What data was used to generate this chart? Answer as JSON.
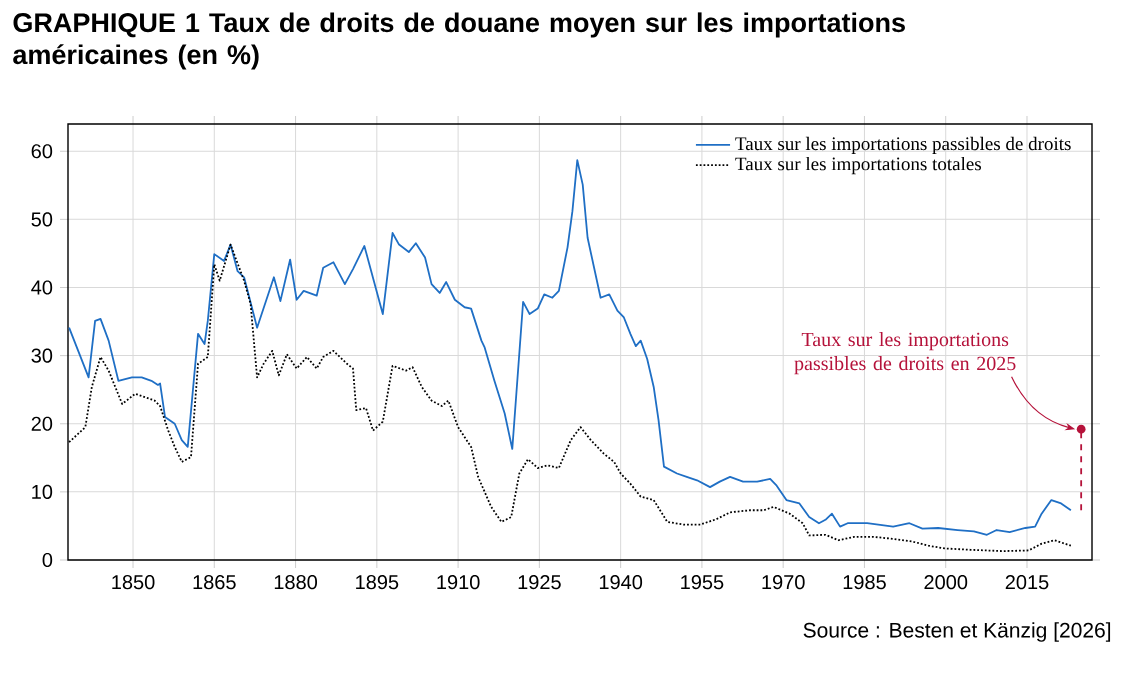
{
  "chart_data": {
    "type": "line",
    "title": "GRAPHIQUE 1  Taux de droits de douane moyen sur les importations américaines (en %)",
    "xlim": [
      1838,
      2027
    ],
    "ylim": [
      0,
      64
    ],
    "xticks": [
      1850,
      1865,
      1880,
      1895,
      1910,
      1925,
      1940,
      1955,
      1970,
      1985,
      2000,
      2015
    ],
    "yticks": [
      0,
      10,
      20,
      30,
      40,
      50,
      60
    ],
    "grid": true,
    "legend": "top right",
    "series": [
      {
        "name": "Taux sur les importations passibles de droits",
        "color": "#1f6fc5",
        "line_style": "solid",
        "x": [
          1838.2,
          1841.8,
          1843,
          1844,
          1845.5,
          1847.3,
          1849.8,
          1851.6,
          1853.4,
          1854.6,
          1855,
          1855.9,
          1857.7,
          1859,
          1860.1,
          1862,
          1863.2,
          1863.8,
          1865,
          1866.8,
          1868,
          1869.3,
          1870.5,
          1872.9,
          1876,
          1877.2,
          1879,
          1880.2,
          1881.5,
          1883.9,
          1885.1,
          1887,
          1889.1,
          1890.6,
          1892.7,
          1896.1,
          1897.9,
          1899.1,
          1900.9,
          1902.2,
          1903.9,
          1905.1,
          1906.6,
          1907.8,
          1909.4,
          1911.2,
          1912.4,
          1914.3,
          1914.9,
          1916.7,
          1918.6,
          1920,
          1922,
          1923.2,
          1924.7,
          1925.9,
          1927.4,
          1928.6,
          1930.2,
          1931.1,
          1932,
          1933,
          1933.9,
          1935.1,
          1936.3,
          1937.9,
          1939.4,
          1940.6,
          1941.8,
          1942.8,
          1943.7,
          1944.9,
          1946.1,
          1947,
          1948,
          1950.4,
          1952.2,
          1954.1,
          1956.5,
          1958.3,
          1960.2,
          1962.6,
          1965.2,
          1967.6,
          1968.8,
          1970.6,
          1973,
          1974.8,
          1976.6,
          1977.8,
          1979,
          1980.5,
          1981.9,
          1985.5,
          1990.3,
          1993.3,
          1995.7,
          1998.6,
          2002.2,
          2005.2,
          2007.6,
          2009.4,
          2011.8,
          2014.7,
          2016.5,
          2017.7,
          2019.5,
          2021.3,
          2023.1
        ],
        "values": [
          34.1,
          26.8,
          35.1,
          35.4,
          32.2,
          26.3,
          26.8,
          26.8,
          26.3,
          25.7,
          25.9,
          21,
          20,
          17.6,
          16.6,
          33.2,
          31.7,
          35.1,
          44.9,
          43.9,
          46.3,
          42.4,
          41.5,
          34.1,
          41.5,
          38,
          44.1,
          38.2,
          39.5,
          38.8,
          42.9,
          43.7,
          40.5,
          42.7,
          46.1,
          36.1,
          48,
          46.3,
          45.2,
          46.5,
          44.4,
          40.5,
          39.2,
          40.8,
          38.2,
          37.1,
          36.9,
          32.2,
          31.2,
          26.3,
          21.5,
          16.3,
          37.9,
          36.1,
          36.9,
          39,
          38.5,
          39.5,
          45.9,
          51.2,
          58.7,
          55.1,
          47.3,
          42.9,
          38.5,
          39,
          36.6,
          35.6,
          33.2,
          31.4,
          32.2,
          29.5,
          25.4,
          20.5,
          13.7,
          12.7,
          12.2,
          11.7,
          10.7,
          11.5,
          12.2,
          11.5,
          11.5,
          11.9,
          10.9,
          8.8,
          8.3,
          6.3,
          5.4,
          5.9,
          6.8,
          4.9,
          5.4,
          5.4,
          4.9,
          5.4,
          4.6,
          4.7,
          4.4,
          4.2,
          3.7,
          4.4,
          4.1,
          4.7,
          4.9,
          6.8,
          8.8,
          8.3,
          7.3
        ]
      },
      {
        "name": "Taux sur les importations totales",
        "color": "#000000",
        "line_style": "dotted",
        "x": [
          1838.2,
          1841.2,
          1842.4,
          1844,
          1845.5,
          1848,
          1850.4,
          1854,
          1855,
          1856.5,
          1857.7,
          1859,
          1860.7,
          1862,
          1863.8,
          1865,
          1866,
          1868,
          1870.5,
          1871.7,
          1872.9,
          1874.1,
          1875.7,
          1876.9,
          1878.4,
          1880.2,
          1882.1,
          1883.9,
          1885.1,
          1887,
          1889.5,
          1890.6,
          1891.2,
          1893,
          1894.3,
          1896.1,
          1897.9,
          1900.4,
          1901.6,
          1903.3,
          1905.1,
          1907,
          1908.2,
          1910,
          1912.4,
          1913.7,
          1916.1,
          1918,
          1919.8,
          1921.3,
          1922.9,
          1924.7,
          1926.5,
          1928.6,
          1930.8,
          1932.6,
          1934.5,
          1936.9,
          1938.8,
          1940,
          1941.8,
          1943.7,
          1946.1,
          1948.6,
          1951.6,
          1954.7,
          1957.7,
          1960.2,
          1963.9,
          1966.4,
          1968.2,
          1971.2,
          1973.6,
          1974.8,
          1977.8,
          1980.2,
          1983.1,
          1986.7,
          1990.3,
          1993.9,
          1996.8,
          1999.8,
          2004.6,
          2010.6,
          2015.3,
          2017.7,
          2020.1,
          2023.1
        ],
        "values": [
          17.3,
          19.5,
          25.4,
          29.8,
          27.8,
          22.9,
          24.4,
          23.4,
          22.6,
          19,
          16.6,
          14.4,
          15.1,
          28.8,
          29.8,
          43.4,
          41,
          46.3,
          41,
          37.6,
          26.8,
          28.8,
          30.7,
          27.1,
          30.2,
          28.1,
          29.8,
          28.1,
          29.8,
          30.7,
          28.8,
          28.1,
          22,
          22.3,
          19,
          20.3,
          28.5,
          27.8,
          28.3,
          25.4,
          23.4,
          22.6,
          23.4,
          19.5,
          16.6,
          12.2,
          7.8,
          5.6,
          6.3,
          12.7,
          14.8,
          13.5,
          13.9,
          13.5,
          17.6,
          19.5,
          17.6,
          15.6,
          14.4,
          12.7,
          11.2,
          9.3,
          8.8,
          5.6,
          5.2,
          5.2,
          6,
          7,
          7.3,
          7.3,
          7.8,
          6.8,
          5.4,
          3.6,
          3.7,
          2.9,
          3.4,
          3.4,
          3.1,
          2.7,
          2.1,
          1.7,
          1.5,
          1.3,
          1.4,
          2.4,
          2.9,
          2.1
        ]
      },
      {
        "color": "#b5123a",
        "line_style": "dashed",
        "x": [
          2025,
          2025
        ],
        "values": [
          7.3,
          19.2
        ]
      }
    ],
    "annotations": [
      {
        "text": "Taux sur les importations passibles de droits en 2025",
        "x": 2025,
        "y": 19.2
      },
      "Source : Besten et Känzig [2026]"
    ]
  }
}
